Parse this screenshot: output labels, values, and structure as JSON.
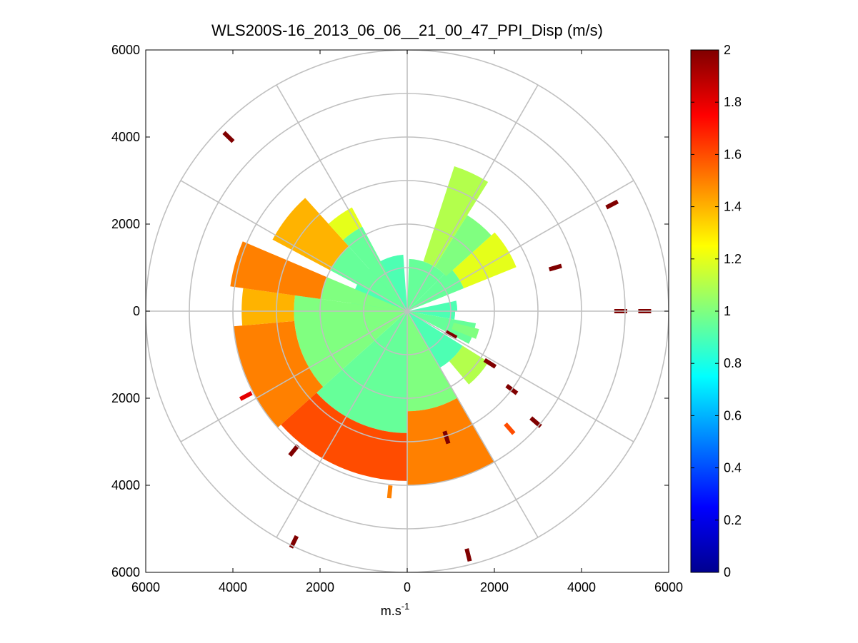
{
  "chart_data": {
    "type": "polar-ppi",
    "title": "WLS200S-16_2013_06_06__21_00_47_PPI_Disp (m/s)",
    "xlabel": "m.s",
    "xlabel_sup": "-1",
    "ylabel": "",
    "xlim": [
      -6000,
      6000
    ],
    "ylim": [
      -6000,
      6000
    ],
    "x_tick_labels": [
      "6000",
      "4000",
      "2000",
      "0",
      "2000",
      "4000",
      "6000"
    ],
    "y_tick_labels": [
      "6000",
      "4000",
      "2000",
      "0",
      "2000",
      "4000",
      "6000"
    ],
    "polar_grid": {
      "range_rings_m": [
        1000,
        2000,
        3000,
        4000,
        5000,
        6000
      ],
      "spoke_angles_deg": [
        0,
        30,
        60,
        90,
        120,
        150,
        180,
        210,
        240,
        270,
        300,
        330
      ]
    },
    "colorbar": {
      "colormap": "jet",
      "clim": [
        0,
        2
      ],
      "tick_labels": [
        "2",
        "1.8",
        "1.6",
        "1.4",
        "1.2",
        "1",
        "0.8",
        "0.6",
        "0.4",
        "0.2",
        "0"
      ]
    },
    "value_colors": {
      "0.0": "#00008f",
      "0.2": "#0000ff",
      "0.4": "#006fff",
      "0.6": "#00dfff",
      "0.8": "#4fffaf",
      "1.0": "#bfff3f",
      "1.2": "#ffdf00",
      "1.4": "#ff7f00",
      "1.6": "#ff1f00",
      "1.8": "#cf0000",
      "2.0": "#7f0000"
    },
    "data_sectors": [
      {
        "az_start_deg": 271,
        "az_end_deg": 356,
        "range_m": [
          0,
          1300
        ],
        "value": 0.9
      },
      {
        "az_start_deg": 2,
        "az_end_deg": 45,
        "range_m": [
          0,
          1200
        ],
        "value": 0.95
      },
      {
        "az_start_deg": 45,
        "az_end_deg": 68,
        "range_m": [
          0,
          1400
        ],
        "value": 0.95
      },
      {
        "az_start_deg": 78,
        "az_end_deg": 90,
        "range_m": [
          0,
          1150
        ],
        "value": 0.9
      },
      {
        "az_start_deg": 90,
        "az_end_deg": 100,
        "range_m": [
          0,
          1100
        ],
        "value": 0.9
      },
      {
        "az_start_deg": 100,
        "az_end_deg": 118,
        "range_m": [
          0,
          1600
        ],
        "value": 0.95
      },
      {
        "az_start_deg": 122,
        "az_end_deg": 150,
        "range_m": [
          0,
          1500
        ],
        "value": 0.9
      },
      {
        "az_start_deg": 150,
        "az_end_deg": 180,
        "range_m": [
          0,
          2300
        ],
        "value": 1.0
      },
      {
        "az_start_deg": 180,
        "az_end_deg": 228,
        "range_m": [
          0,
          2800
        ],
        "value": 0.95
      },
      {
        "az_start_deg": 228,
        "az_end_deg": 278,
        "range_m": [
          0,
          2600
        ],
        "value": 1.0
      },
      {
        "az_start_deg": 278,
        "az_end_deg": 293,
        "range_m": [
          0,
          2000
        ],
        "value": 1.0
      },
      {
        "az_start_deg": 298,
        "az_end_deg": 318,
        "range_m": [
          0,
          2000
        ],
        "value": 0.95
      },
      {
        "az_start_deg": 318,
        "az_end_deg": 332,
        "range_m": [
          0,
          2200
        ],
        "value": 0.95
      },
      {
        "az_start_deg": 18,
        "az_end_deg": 32,
        "range_m": [
          1200,
          3500
        ],
        "value": 1.1
      },
      {
        "az_start_deg": 32,
        "az_end_deg": 48,
        "range_m": [
          1200,
          2600
        ],
        "value": 1.0
      },
      {
        "az_start_deg": 48,
        "az_end_deg": 68,
        "range_m": [
          1400,
          2700
        ],
        "value": 1.2
      },
      {
        "az_start_deg": 104,
        "az_end_deg": 112,
        "range_m": [
          1100,
          1700
        ],
        "value": 1.0
      },
      {
        "az_start_deg": 122,
        "az_end_deg": 140,
        "range_m": [
          1500,
          2200
        ],
        "value": 1.1
      },
      {
        "az_start_deg": 150,
        "az_end_deg": 180,
        "range_m": [
          2300,
          4000
        ],
        "value": 1.5
      },
      {
        "az_start_deg": 180,
        "az_end_deg": 228,
        "range_m": [
          2800,
          3900
        ],
        "value": 1.6
      },
      {
        "az_start_deg": 228,
        "az_end_deg": 265,
        "range_m": [
          2600,
          4000
        ],
        "value": 1.5
      },
      {
        "az_start_deg": 265,
        "az_end_deg": 278,
        "range_m": [
          2600,
          3800
        ],
        "value": 1.4
      },
      {
        "az_start_deg": 278,
        "az_end_deg": 293,
        "range_m": [
          2000,
          4100
        ],
        "value": 1.5
      },
      {
        "az_start_deg": 298,
        "az_end_deg": 318,
        "range_m": [
          2000,
          3500
        ],
        "value": 1.4
      },
      {
        "az_start_deg": 318,
        "az_end_deg": 332,
        "range_m": [
          2200,
          2700
        ],
        "value": 1.2
      }
    ],
    "isolated_points": [
      {
        "x_m": -4100,
        "y_m": 4000,
        "value": 2.0
      },
      {
        "x_m": 4700,
        "y_m": 2450,
        "value": 2.0
      },
      {
        "x_m": 3400,
        "y_m": 1000,
        "value": 2.0
      },
      {
        "x_m": 4900,
        "y_m": 0,
        "value": 2.0
      },
      {
        "x_m": 5450,
        "y_m": 0,
        "value": 2.0
      },
      {
        "x_m": 1000,
        "y_m": -540,
        "value": 2.0
      },
      {
        "x_m": 1900,
        "y_m": -1200,
        "value": 2.0
      },
      {
        "x_m": 2400,
        "y_m": -1800,
        "value": 2.0
      },
      {
        "x_m": 2950,
        "y_m": -2550,
        "value": 2.0
      },
      {
        "x_m": 2350,
        "y_m": -2700,
        "value": 1.6
      },
      {
        "x_m": 900,
        "y_m": -2900,
        "value": 2.0
      },
      {
        "x_m": -3700,
        "y_m": -1950,
        "value": 1.8
      },
      {
        "x_m": -2600,
        "y_m": -5300,
        "value": 2.0
      },
      {
        "x_m": 1400,
        "y_m": -5600,
        "value": 2.0
      },
      {
        "x_m": -400,
        "y_m": -4150,
        "value": 1.5
      },
      {
        "x_m": -2600,
        "y_m": -3200,
        "value": 2.0
      }
    ]
  }
}
